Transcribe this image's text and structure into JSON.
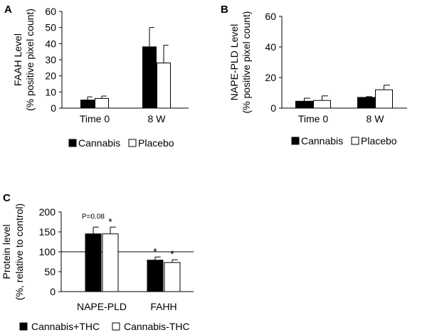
{
  "chart_data": [
    {
      "type": "bar",
      "panel_label": "A",
      "title": "",
      "ylabel_lines": [
        "FAAH Level",
        "(% positive pixel count)"
      ],
      "xlabel": "",
      "categories": [
        "Time 0",
        "8 W"
      ],
      "ylim": [
        0,
        60
      ],
      "yticks": [
        0,
        10,
        20,
        30,
        40,
        50,
        60
      ],
      "series": [
        {
          "name": "Cannabis",
          "fill": "#000000",
          "values": [
            5,
            38
          ],
          "errors": [
            2,
            12
          ]
        },
        {
          "name": "Placebo",
          "fill": "#ffffff",
          "values": [
            6,
            28
          ],
          "errors": [
            1.5,
            11
          ]
        }
      ],
      "legend": "bottom"
    },
    {
      "type": "bar",
      "panel_label": "B",
      "title": "",
      "ylabel_lines": [
        "NAPE-PLD Level",
        "(% positive pixel count)"
      ],
      "xlabel": "",
      "categories": [
        "Time 0",
        "8 W"
      ],
      "ylim": [
        0,
        60
      ],
      "yticks": [
        0,
        20,
        40,
        60
      ],
      "series": [
        {
          "name": "Cannabis",
          "fill": "#000000",
          "values": [
            4.5,
            7
          ],
          "errors": [
            2,
            0.5
          ]
        },
        {
          "name": "Placebo",
          "fill": "#ffffff",
          "values": [
            5,
            12
          ],
          "errors": [
            3,
            3
          ]
        }
      ],
      "legend": "bottom"
    },
    {
      "type": "bar",
      "panel_label": "C",
      "title": "",
      "ylabel_lines": [
        "Protein level",
        "(%, relative to control)"
      ],
      "xlabel": "",
      "categories": [
        "NAPE-PLD",
        "FAHH"
      ],
      "ylim": [
        0,
        200
      ],
      "yticks": [
        0,
        50,
        100,
        150,
        200
      ],
      "reference_line": 100,
      "series": [
        {
          "name": "Cannabis+THC",
          "fill": "#000000",
          "values": [
            145,
            79
          ],
          "errors": [
            17,
            8
          ]
        },
        {
          "name": "Cannabis-THC",
          "fill": "#ffffff",
          "values": [
            145,
            73
          ],
          "errors": [
            17,
            7
          ]
        }
      ],
      "annotations": [
        {
          "text": "P=0.08",
          "category": 0,
          "series": 0
        },
        {
          "text": "*",
          "category": 0,
          "series": 1
        },
        {
          "text": "*",
          "category": 1,
          "series": 0
        },
        {
          "text": "*",
          "category": 1,
          "series": 1
        }
      ],
      "legend": "bottom"
    }
  ]
}
